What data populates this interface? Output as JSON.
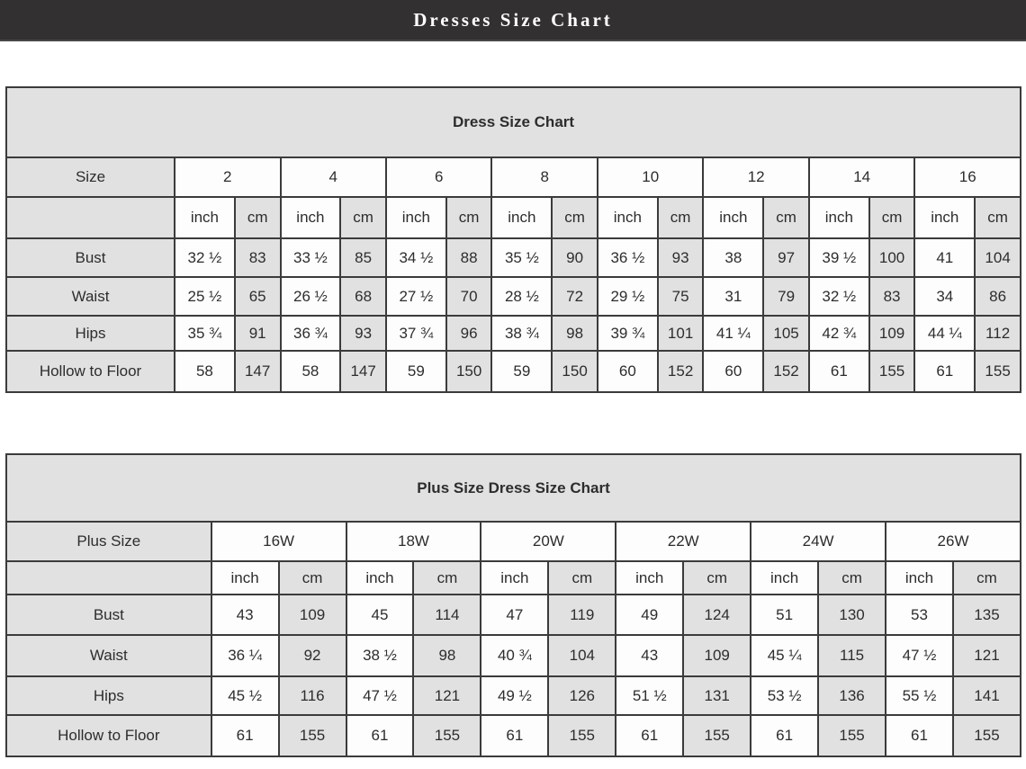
{
  "header": {
    "title": "Dresses Size Chart"
  },
  "colors": {
    "topbar_bg": "#333031",
    "topbar_text": "#ffffff",
    "band_gray": "#e1e1e1",
    "cell_white": "#fdfdfd",
    "border": "#3b3b3b",
    "text": "#2d2d2d"
  },
  "chart_data": [
    {
      "type": "table",
      "title": "Dress Size Chart",
      "corner_label": "Size",
      "sizes": [
        "2",
        "4",
        "6",
        "8",
        "10",
        "12",
        "14",
        "16"
      ],
      "unit_labels": {
        "inch": "inch",
        "cm": "cm"
      },
      "rows": [
        {
          "label": "Bust",
          "values": [
            [
              "32 ½",
              "83"
            ],
            [
              "33 ½",
              "85"
            ],
            [
              "34 ½",
              "88"
            ],
            [
              "35 ½",
              "90"
            ],
            [
              "36 ½",
              "93"
            ],
            [
              "38",
              "97"
            ],
            [
              "39 ½",
              "100"
            ],
            [
              "41",
              "104"
            ]
          ]
        },
        {
          "label": "Waist",
          "values": [
            [
              "25 ½",
              "65"
            ],
            [
              "26 ½",
              "68"
            ],
            [
              "27 ½",
              "70"
            ],
            [
              "28 ½",
              "72"
            ],
            [
              "29 ½",
              "75"
            ],
            [
              "31",
              "79"
            ],
            [
              "32 ½",
              "83"
            ],
            [
              "34",
              "86"
            ]
          ]
        },
        {
          "label": "Hips",
          "values": [
            [
              "35 ¾",
              "91"
            ],
            [
              "36 ¾",
              "93"
            ],
            [
              "37 ¾",
              "96"
            ],
            [
              "38 ¾",
              "98"
            ],
            [
              "39 ¾",
              "101"
            ],
            [
              "41 ¼",
              "105"
            ],
            [
              "42 ¾",
              "109"
            ],
            [
              "44 ¼",
              "112"
            ]
          ]
        },
        {
          "label": "Hollow to Floor",
          "values": [
            [
              "58",
              "147"
            ],
            [
              "58",
              "147"
            ],
            [
              "59",
              "150"
            ],
            [
              "59",
              "150"
            ],
            [
              "60",
              "152"
            ],
            [
              "60",
              "152"
            ],
            [
              "61",
              "155"
            ],
            [
              "61",
              "155"
            ]
          ]
        }
      ]
    },
    {
      "type": "table",
      "title": "Plus Size Dress Size Chart",
      "corner_label": "Plus Size",
      "sizes": [
        "16W",
        "18W",
        "20W",
        "22W",
        "24W",
        "26W"
      ],
      "unit_labels": {
        "inch": "inch",
        "cm": "cm"
      },
      "rows": [
        {
          "label": "Bust",
          "values": [
            [
              "43",
              "109"
            ],
            [
              "45",
              "114"
            ],
            [
              "47",
              "119"
            ],
            [
              "49",
              "124"
            ],
            [
              "51",
              "130"
            ],
            [
              "53",
              "135"
            ]
          ]
        },
        {
          "label": "Waist",
          "values": [
            [
              "36 ¼",
              "92"
            ],
            [
              "38 ½",
              "98"
            ],
            [
              "40 ¾",
              "104"
            ],
            [
              "43",
              "109"
            ],
            [
              "45 ¼",
              "115"
            ],
            [
              "47 ½",
              "121"
            ]
          ]
        },
        {
          "label": "Hips",
          "values": [
            [
              "45 ½",
              "116"
            ],
            [
              "47 ½",
              "121"
            ],
            [
              "49 ½",
              "126"
            ],
            [
              "51 ½",
              "131"
            ],
            [
              "53 ½",
              "136"
            ],
            [
              "55 ½",
              "141"
            ]
          ]
        },
        {
          "label": "Hollow to Floor",
          "values": [
            [
              "61",
              "155"
            ],
            [
              "61",
              "155"
            ],
            [
              "61",
              "155"
            ],
            [
              "61",
              "155"
            ],
            [
              "61",
              "155"
            ],
            [
              "61",
              "155"
            ]
          ]
        }
      ]
    }
  ]
}
